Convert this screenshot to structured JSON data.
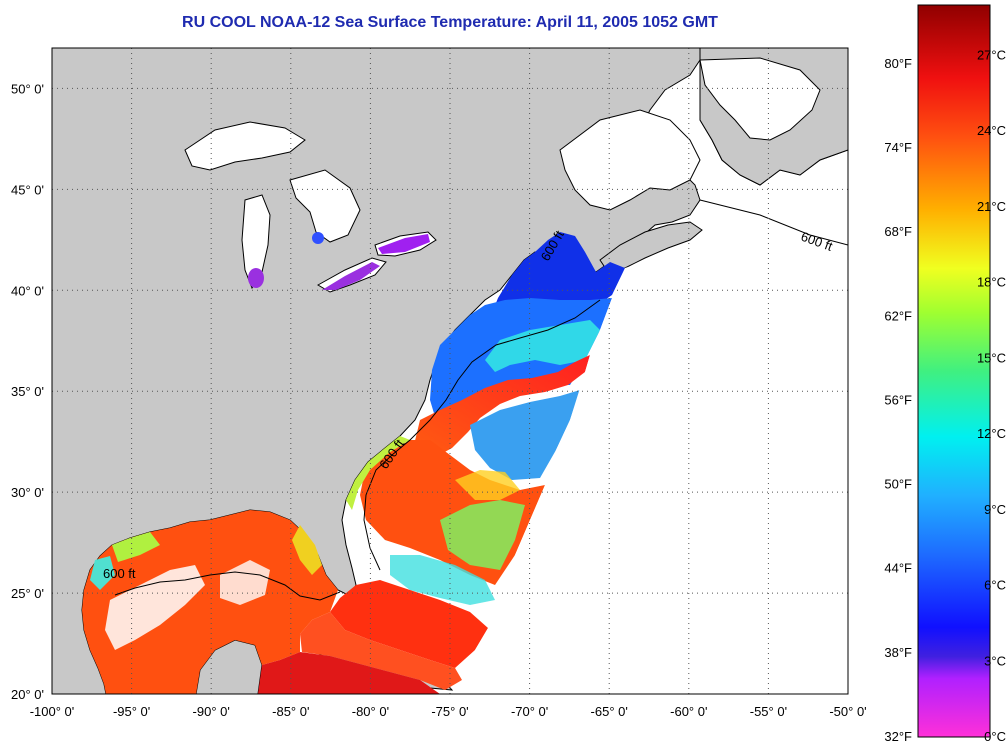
{
  "title": "RU COOL  NOAA-12  Sea Surface Temperature:  April 11, 2005 1052 GMT",
  "map": {
    "lon_range": [
      -100,
      -50
    ],
    "lat_range": [
      20,
      52
    ],
    "lon_ticks": [
      {
        "value": -100,
        "label": "-100° 0'"
      },
      {
        "value": -95,
        "label": "-95° 0'"
      },
      {
        "value": -90,
        "label": "-90° 0'"
      },
      {
        "value": -85,
        "label": "-85° 0'"
      },
      {
        "value": -80,
        "label": "-80° 0'"
      },
      {
        "value": -75,
        "label": "-75° 0'"
      },
      {
        "value": -70,
        "label": "-70° 0'"
      },
      {
        "value": -65,
        "label": "-65° 0'"
      },
      {
        "value": -60,
        "label": "-60° 0'"
      },
      {
        "value": -55,
        "label": "-55° 0'"
      },
      {
        "value": -50,
        "label": "-50° 0'"
      }
    ],
    "lat_ticks": [
      {
        "value": 20,
        "label": "20° 0'"
      },
      {
        "value": 25,
        "label": "25° 0'"
      },
      {
        "value": 30,
        "label": "30° 0'"
      },
      {
        "value": 35,
        "label": "35° 0'"
      },
      {
        "value": 40,
        "label": "40° 0'"
      },
      {
        "value": 45,
        "label": "45° 0'"
      },
      {
        "value": 50,
        "label": "50° 0'"
      }
    ],
    "contour_label": "600 ft",
    "colors": {
      "land": "#c8c8c8",
      "no_data": "#ffffff",
      "grid": "#555555"
    }
  },
  "colorbar": {
    "fahrenheit_ticks": [
      {
        "value": 32,
        "label": "32°F"
      },
      {
        "value": 38,
        "label": "38°F"
      },
      {
        "value": 44,
        "label": "44°F"
      },
      {
        "value": 50,
        "label": "50°F"
      },
      {
        "value": 56,
        "label": "56°F"
      },
      {
        "value": 62,
        "label": "62°F"
      },
      {
        "value": 68,
        "label": "68°F"
      },
      {
        "value": 74,
        "label": "74°F"
      },
      {
        "value": 80,
        "label": "80°F"
      }
    ],
    "celsius_ticks": [
      {
        "value": 0,
        "label": "0°C"
      },
      {
        "value": 3,
        "label": "3°C"
      },
      {
        "value": 6,
        "label": "6°C"
      },
      {
        "value": 9,
        "label": "9°C"
      },
      {
        "value": 12,
        "label": "12°C"
      },
      {
        "value": 15,
        "label": "15°C"
      },
      {
        "value": 18,
        "label": "18°C"
      },
      {
        "value": 21,
        "label": "21°C"
      },
      {
        "value": 24,
        "label": "24°C"
      },
      {
        "value": 27,
        "label": "27°C"
      }
    ],
    "range_c": [
      0,
      29
    ]
  }
}
